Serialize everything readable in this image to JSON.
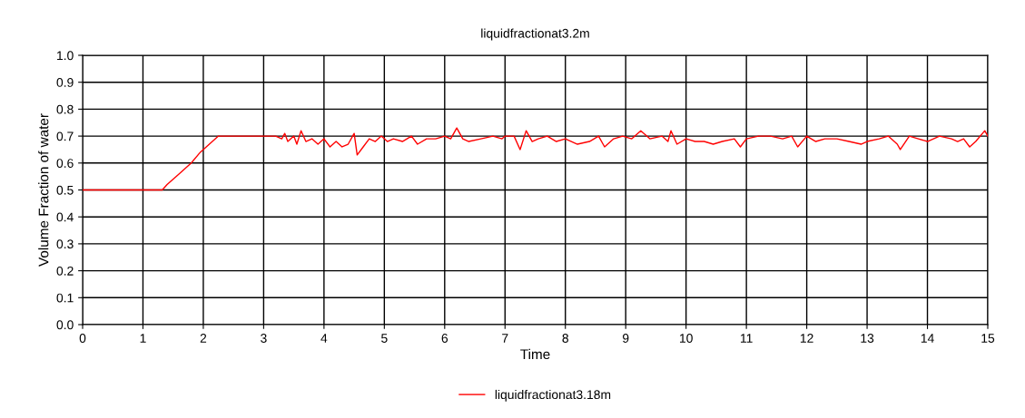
{
  "chart_data": {
    "type": "line",
    "title": "liquidfractionat3.2m",
    "xlabel": "Time",
    "ylabel": "Volume Fraction of water",
    "series": [
      {
        "name": "liquidfractionat3.18m",
        "color": "#ff0000",
        "x": [
          0,
          1.32,
          1.4,
          1.6,
          1.8,
          1.95,
          2.05,
          2.15,
          2.25,
          3.2,
          3.3,
          3.35,
          3.4,
          3.5,
          3.55,
          3.62,
          3.7,
          3.8,
          3.9,
          4.0,
          4.1,
          4.2,
          4.3,
          4.4,
          4.5,
          4.55,
          4.65,
          4.75,
          4.85,
          4.95,
          5.05,
          5.15,
          5.3,
          5.45,
          5.55,
          5.7,
          5.85,
          6.0,
          6.1,
          6.2,
          6.3,
          6.4,
          6.6,
          6.8,
          6.95,
          7.0,
          7.15,
          7.25,
          7.35,
          7.45,
          7.55,
          7.7,
          7.85,
          8.0,
          8.2,
          8.4,
          8.55,
          8.65,
          8.8,
          8.95,
          9.1,
          9.25,
          9.4,
          9.6,
          9.7,
          9.75,
          9.85,
          10.0,
          10.15,
          10.3,
          10.45,
          10.6,
          10.8,
          10.9,
          11.0,
          11.2,
          11.4,
          11.6,
          11.75,
          11.85,
          12.0,
          12.15,
          12.3,
          12.5,
          12.7,
          12.9,
          13.0,
          13.2,
          13.35,
          13.5,
          13.55,
          13.7,
          13.85,
          14.0,
          14.2,
          14.4,
          14.5,
          14.6,
          14.7,
          14.8,
          14.95,
          15.0
        ],
        "values": [
          0.5,
          0.5,
          0.52,
          0.56,
          0.6,
          0.64,
          0.66,
          0.68,
          0.7,
          0.7,
          0.69,
          0.71,
          0.68,
          0.7,
          0.67,
          0.72,
          0.68,
          0.69,
          0.67,
          0.69,
          0.66,
          0.68,
          0.66,
          0.67,
          0.71,
          0.63,
          0.66,
          0.69,
          0.68,
          0.7,
          0.68,
          0.69,
          0.68,
          0.7,
          0.67,
          0.69,
          0.69,
          0.7,
          0.69,
          0.73,
          0.69,
          0.68,
          0.69,
          0.7,
          0.69,
          0.7,
          0.7,
          0.65,
          0.72,
          0.68,
          0.69,
          0.7,
          0.68,
          0.69,
          0.67,
          0.68,
          0.7,
          0.66,
          0.69,
          0.7,
          0.69,
          0.72,
          0.69,
          0.7,
          0.68,
          0.72,
          0.67,
          0.69,
          0.68,
          0.68,
          0.67,
          0.68,
          0.69,
          0.66,
          0.69,
          0.7,
          0.7,
          0.69,
          0.7,
          0.66,
          0.7,
          0.68,
          0.69,
          0.69,
          0.68,
          0.67,
          0.68,
          0.69,
          0.7,
          0.67,
          0.65,
          0.7,
          0.69,
          0.68,
          0.7,
          0.69,
          0.68,
          0.69,
          0.66,
          0.68,
          0.72,
          0.7
        ]
      }
    ],
    "xlim": [
      0,
      15
    ],
    "xticks": [
      0,
      1,
      2,
      3,
      4,
      5,
      6,
      7,
      8,
      9,
      10,
      11,
      12,
      13,
      14,
      15
    ],
    "ylim": [
      0,
      1
    ],
    "yticks": [
      {
        "value": 0,
        "label": "0.0"
      },
      0.1,
      0.2,
      0.3,
      0.4,
      0.5,
      0.6,
      0.7,
      0.8,
      0.9,
      {
        "value": 1,
        "label": "1.0"
      }
    ],
    "grid": true,
    "legend": "bottom",
    "marker": "none",
    "line_style": "solid"
  }
}
